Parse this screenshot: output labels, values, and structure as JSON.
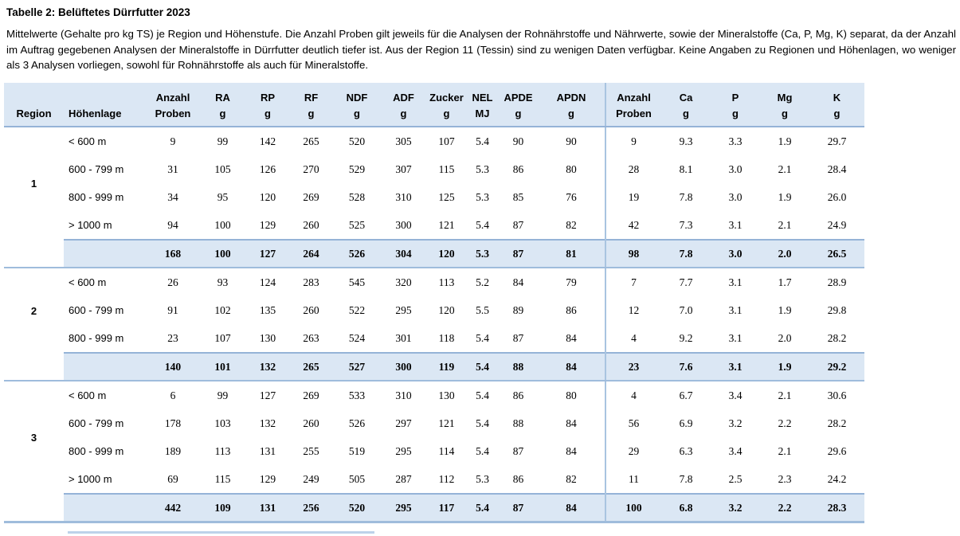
{
  "title": "Tabelle 2: Belüftetes Dürrfutter 2023",
  "intro": "Mittelwerte (Gehalte pro kg TS) je Region und Höhenstufe. Die Anzahl Proben gilt jeweils für die Analysen der Rohnährstoffe und Nährwerte, sowie der Mineralstoffe (Ca, P, Mg, K) separat, da der Anzahl im Auftrag gegebenen Analysen der Mineralstoffe in Dürrfutter deutlich tiefer ist. Aus der Region 11 (Tessin) sind zu wenigen Daten verfügbar. Keine Angaben zu Regionen und Höhenlagen, wo weniger als 3 Analysen vorliegen, sowohl für Rohnährstoffe als auch für Mineralstoffe.",
  "table": {
    "header": {
      "region": "Region",
      "hoehenlage": "Höhenlage"
    },
    "columns": [
      {
        "l1": "Anzahl",
        "l2": "Proben"
      },
      {
        "l1": "RA",
        "l2": "g"
      },
      {
        "l1": "RP",
        "l2": "g"
      },
      {
        "l1": "RF",
        "l2": "g"
      },
      {
        "l1": "NDF",
        "l2": "g"
      },
      {
        "l1": "ADF",
        "l2": "g"
      },
      {
        "l1": "Zucker",
        "l2": "g"
      },
      {
        "l1": "NEL",
        "l2": "MJ"
      },
      {
        "l1": "APDE",
        "l2": "g"
      },
      {
        "l1": "APDN",
        "l2": "g"
      },
      {
        "l1": "Anzahl",
        "l2": "Proben",
        "divider": true
      },
      {
        "l1": "Ca",
        "l2": "g"
      },
      {
        "l1": "P",
        "l2": "g"
      },
      {
        "l1": "Mg",
        "l2": "g"
      },
      {
        "l1": "K",
        "l2": "g"
      }
    ],
    "regions": [
      {
        "region": "1",
        "rows": [
          {
            "hoehenlage": "< 600 m",
            "values": [
              "9",
              "99",
              "142",
              "265",
              "520",
              "305",
              "107",
              "5.4",
              "90",
              "90",
              "9",
              "9.3",
              "3.3",
              "1.9",
              "29.7"
            ]
          },
          {
            "hoehenlage": "600 - 799 m",
            "values": [
              "31",
              "105",
              "126",
              "270",
              "529",
              "307",
              "115",
              "5.3",
              "86",
              "80",
              "28",
              "8.1",
              "3.0",
              "2.1",
              "28.4"
            ]
          },
          {
            "hoehenlage": "800 - 999 m",
            "values": [
              "34",
              "95",
              "120",
              "269",
              "528",
              "310",
              "125",
              "5.3",
              "85",
              "76",
              "19",
              "7.8",
              "3.0",
              "1.9",
              "26.0"
            ]
          },
          {
            "hoehenlage": "> 1000 m",
            "values": [
              "94",
              "100",
              "129",
              "260",
              "525",
              "300",
              "121",
              "5.4",
              "87",
              "82",
              "42",
              "7.3",
              "3.1",
              "2.1",
              "24.9"
            ]
          }
        ],
        "total": [
          "168",
          "100",
          "127",
          "264",
          "526",
          "304",
          "120",
          "5.3",
          "87",
          "81",
          "98",
          "7.8",
          "3.0",
          "2.0",
          "26.5"
        ]
      },
      {
        "region": "2",
        "rows": [
          {
            "hoehenlage": "< 600 m",
            "values": [
              "26",
              "93",
              "124",
              "283",
              "545",
              "320",
              "113",
              "5.2",
              "84",
              "79",
              "7",
              "7.7",
              "3.1",
              "1.7",
              "28.9"
            ]
          },
          {
            "hoehenlage": "600 - 799 m",
            "values": [
              "91",
              "102",
              "135",
              "260",
              "522",
              "295",
              "120",
              "5.5",
              "89",
              "86",
              "12",
              "7.0",
              "3.1",
              "1.9",
              "29.8"
            ]
          },
          {
            "hoehenlage": "800 - 999 m",
            "values": [
              "23",
              "107",
              "130",
              "263",
              "524",
              "301",
              "118",
              "5.4",
              "87",
              "84",
              "4",
              "9.2",
              "3.1",
              "2.0",
              "28.2"
            ]
          }
        ],
        "total": [
          "140",
          "101",
          "132",
          "265",
          "527",
          "300",
          "119",
          "5.4",
          "88",
          "84",
          "23",
          "7.6",
          "3.1",
          "1.9",
          "29.2"
        ]
      },
      {
        "region": "3",
        "rows": [
          {
            "hoehenlage": "< 600 m",
            "values": [
              "6",
              "99",
              "127",
              "269",
              "533",
              "310",
              "130",
              "5.4",
              "86",
              "80",
              "4",
              "6.7",
              "3.4",
              "2.1",
              "30.6"
            ]
          },
          {
            "hoehenlage": "600 - 799 m",
            "values": [
              "178",
              "103",
              "132",
              "260",
              "526",
              "297",
              "121",
              "5.4",
              "88",
              "84",
              "56",
              "6.9",
              "3.2",
              "2.2",
              "28.2"
            ]
          },
          {
            "hoehenlage": "800 - 999 m",
            "values": [
              "189",
              "113",
              "131",
              "255",
              "519",
              "295",
              "114",
              "5.4",
              "87",
              "84",
              "29",
              "6.3",
              "3.4",
              "2.1",
              "29.6"
            ]
          },
          {
            "hoehenlage": "> 1000 m",
            "values": [
              "69",
              "115",
              "129",
              "249",
              "505",
              "287",
              "112",
              "5.3",
              "86",
              "82",
              "11",
              "7.8",
              "2.5",
              "2.3",
              "24.2"
            ]
          }
        ],
        "total": [
          "442",
          "109",
          "131",
          "256",
          "520",
          "295",
          "117",
          "5.4",
          "87",
          "84",
          "100",
          "6.8",
          "3.2",
          "2.2",
          "28.3"
        ]
      }
    ]
  },
  "colors": {
    "header_fill": "#dbe7f4",
    "rule_blue": "#95b3d7",
    "rule_light_blue": "#9fbcdc",
    "divider_blue": "#a9c4e0"
  }
}
